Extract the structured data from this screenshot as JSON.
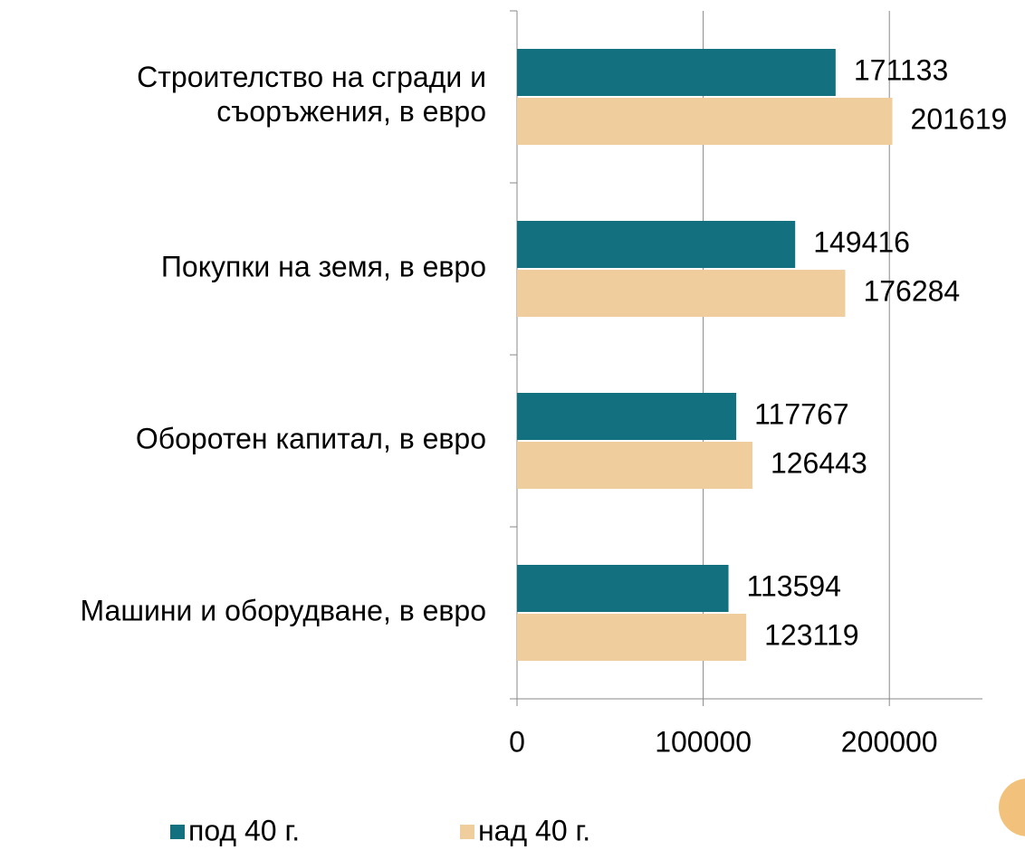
{
  "chart_data": {
    "type": "hbar",
    "categories": [
      "Строителство на сгради и съоръжения, в евро",
      "Покупки на земя, в евро",
      "Оборотен капитал, в евро",
      "Машини и оборудване, в евро"
    ],
    "series": [
      {
        "name": "под 40 г.",
        "color": "#13707f",
        "values": [
          171133,
          149416,
          117767,
          113594
        ]
      },
      {
        "name": "над 40 г.",
        "color": "#f0cd9c",
        "values": [
          201619,
          176284,
          126443,
          123119
        ]
      }
    ],
    "xlim": [
      0,
      250000
    ],
    "xticks": [
      0,
      100000,
      200000
    ],
    "grid": true,
    "legend": "bottom"
  }
}
